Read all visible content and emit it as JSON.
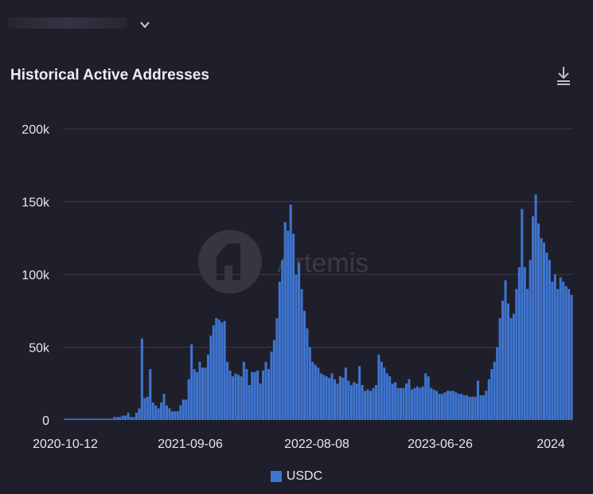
{
  "title": "Historical Active Addresses",
  "legend": {
    "label": "USDC"
  },
  "watermark": "Artemis",
  "icons": {
    "download": "download-icon",
    "chevron": "chevron-down-icon"
  },
  "colors": {
    "series": "#3f75d1",
    "background": "#1f1f2b",
    "grid": "#3a3a48"
  },
  "chart_data": {
    "type": "bar",
    "y_ticks": [
      "0",
      "50k",
      "100k",
      "150k",
      "200k"
    ],
    "ylim": [
      0,
      200000
    ],
    "x_ticks": [
      "2020-10-12",
      "2021-09-06",
      "2022-08-08",
      "2023-06-26",
      "2024"
    ],
    "grid": true,
    "legend_position": "bottom-center",
    "series": [
      {
        "name": "USDC",
        "values": [
          1000,
          1000,
          1000,
          1000,
          1000,
          1000,
          1000,
          1000,
          1000,
          1000,
          1000,
          1000,
          1000,
          1000,
          1000,
          1000,
          1000,
          1000,
          2000,
          2000,
          2000,
          3000,
          3000,
          5000,
          2000,
          2000,
          5000,
          8000,
          56000,
          15000,
          16000,
          35000,
          12000,
          10000,
          8000,
          12000,
          18000,
          10000,
          8000,
          6000,
          6000,
          6000,
          10000,
          14000,
          14000,
          28000,
          52000,
          35000,
          33000,
          40000,
          36000,
          36000,
          45000,
          58000,
          65000,
          70000,
          69000,
          67000,
          68000,
          40000,
          34000,
          30000,
          32000,
          31000,
          30000,
          40000,
          35000,
          24000,
          33000,
          33000,
          34000,
          25000,
          34000,
          40000,
          35000,
          47000,
          55000,
          70000,
          95000,
          110000,
          136000,
          130000,
          148000,
          128000,
          100000,
          108000,
          90000,
          75000,
          63000,
          50000,
          40000,
          38000,
          36000,
          32000,
          31000,
          30000,
          29000,
          32000,
          28000,
          25000,
          30000,
          29000,
          36000,
          27000,
          24000,
          26000,
          25000,
          37000,
          24000,
          20000,
          21000,
          20000,
          22000,
          24000,
          45000,
          40000,
          36000,
          32000,
          30000,
          25000,
          26000,
          22000,
          22000,
          22000,
          25000,
          28000,
          21000,
          22000,
          23000,
          22000,
          23000,
          32000,
          30000,
          22000,
          21000,
          20000,
          18000,
          18000,
          19000,
          20000,
          20000,
          20000,
          19000,
          18000,
          18000,
          17000,
          17000,
          16000,
          16000,
          16000,
          27000,
          17000,
          17000,
          20000,
          28000,
          35000,
          40000,
          50000,
          70000,
          82000,
          96000,
          80000,
          70000,
          73000,
          90000,
          105000,
          145000,
          105000,
          90000,
          110000,
          140000,
          155000,
          135000,
          125000,
          122000,
          115000,
          110000,
          95000,
          100000,
          90000,
          98000,
          95000,
          92000,
          90000,
          86000
        ]
      }
    ]
  }
}
